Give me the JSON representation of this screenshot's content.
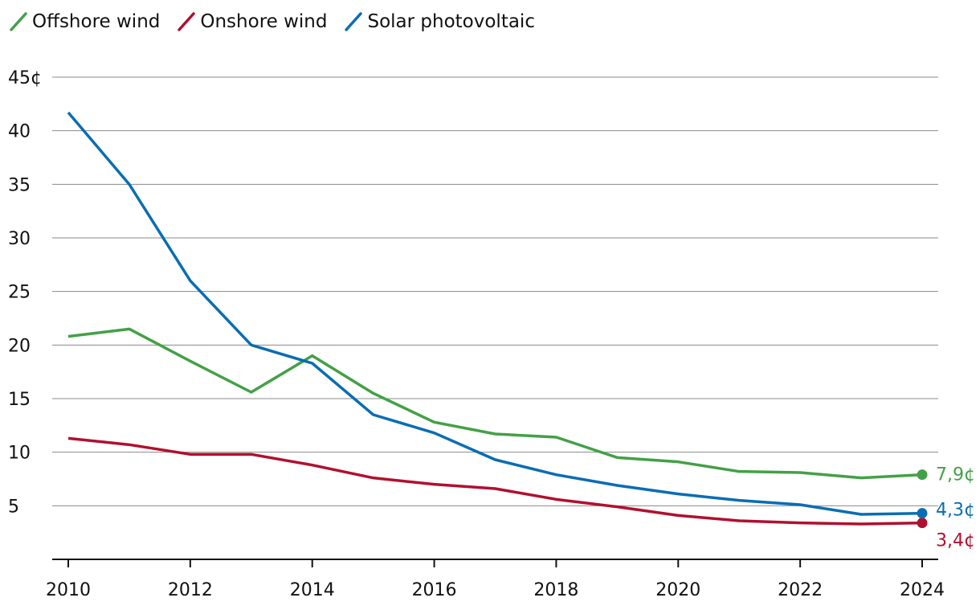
{
  "chart_data": {
    "type": "line",
    "x": [
      2010,
      2011,
      2012,
      2013,
      2014,
      2015,
      2016,
      2017,
      2018,
      2019,
      2020,
      2021,
      2022,
      2023,
      2024
    ],
    "series": [
      {
        "name": "Offshore wind",
        "color": "#43a047",
        "values": [
          20.8,
          21.5,
          18.5,
          15.6,
          19.0,
          15.5,
          12.8,
          11.7,
          11.4,
          9.5,
          9.1,
          8.2,
          8.1,
          7.6,
          7.9
        ],
        "end_label": "7,9¢"
      },
      {
        "name": "Onshore wind",
        "color": "#b0102f",
        "values": [
          11.3,
          10.7,
          9.8,
          9.8,
          8.8,
          7.6,
          7.0,
          6.6,
          5.6,
          4.9,
          4.1,
          3.6,
          3.4,
          3.3,
          3.4
        ],
        "end_label": "3,4¢"
      },
      {
        "name": "Solar photovoltaic",
        "color": "#0a6db3",
        "values": [
          41.7,
          35.0,
          26.0,
          20.0,
          18.3,
          13.5,
          11.8,
          9.3,
          7.9,
          6.9,
          6.1,
          5.5,
          5.1,
          4.2,
          4.3
        ],
        "end_label": "4,3¢"
      }
    ],
    "y_ticks": [
      5,
      10,
      15,
      20,
      25,
      30,
      35,
      40,
      45
    ],
    "y_tick_labels": [
      "5",
      "10",
      "15",
      "20",
      "25",
      "30",
      "35",
      "40",
      "45¢"
    ],
    "x_ticks": [
      2010,
      2012,
      2014,
      2016,
      2018,
      2020,
      2022,
      2024
    ],
    "x_tick_labels": [
      "2010",
      "2012",
      "2014",
      "2016",
      "2018",
      "2020",
      "2022",
      "2024"
    ],
    "ylim": [
      0,
      45
    ],
    "xlim": [
      2010,
      2024
    ],
    "grid": true,
    "legend": "top-left",
    "title": "",
    "xlabel": "",
    "ylabel": ""
  }
}
